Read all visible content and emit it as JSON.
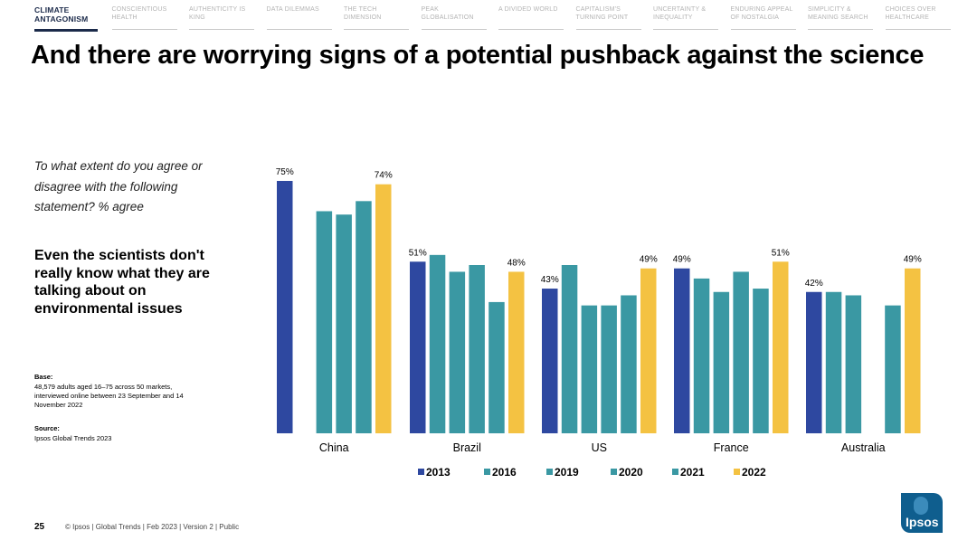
{
  "nav": {
    "items": [
      {
        "label": "Climate Antagonism",
        "active": true
      },
      {
        "label": "Conscientious Health",
        "active": false
      },
      {
        "label": "Authenticity Is King",
        "active": false
      },
      {
        "label": "Data Dilemmas",
        "active": false
      },
      {
        "label": "The Tech Dimension",
        "active": false
      },
      {
        "label": "Peak Globalisation",
        "active": false
      },
      {
        "label": "A Divided World",
        "active": false
      },
      {
        "label": "Capitalism's Turning Point",
        "active": false
      },
      {
        "label": "Uncertainty & Inequality",
        "active": false
      },
      {
        "label": "Enduring Appeal of Nostalgia",
        "active": false
      },
      {
        "label": "Simplicity & Meaning Search",
        "active": false
      },
      {
        "label": "Choices Over Healthcare",
        "active": false
      }
    ]
  },
  "title": "And there are worrying signs of a potential pushback against the science",
  "question": "To what extent do you agree or disagree with the following statement? % agree",
  "statement": "Even the scientists don't really know what they are talking about on environmental issues",
  "base": {
    "heading": "Base:",
    "text": "48,579 adults aged 16–75 across 50 markets, interviewed online between 23 September and 14 November 2022"
  },
  "source": {
    "heading": "Source:",
    "text": "Ipsos Global Trends 2023"
  },
  "footer": {
    "page": "25",
    "text": "© Ipsos | Global Trends | Feb 2023 | Version 2 | Public"
  },
  "logo": {
    "text": "Ipsos"
  },
  "colors": {
    "2013": "#2e48a0",
    "teal": "#3a98a3",
    "2022": "#f4c242",
    "dark_navy": "#1b2a4a",
    "logo_blue": "#0f5e8e"
  },
  "chart_data": {
    "type": "bar",
    "categories": [
      "China",
      "Brazil",
      "US",
      "France",
      "Australia"
    ],
    "series": [
      {
        "name": "2013",
        "color": "#2e48a0",
        "values": [
          75,
          51,
          43,
          49,
          42
        ]
      },
      {
        "name": "2016",
        "color": "#3a98a3",
        "values": [
          null,
          53,
          50,
          46,
          42
        ]
      },
      {
        "name": "2019",
        "color": "#3a98a3",
        "values": [
          66,
          48,
          38,
          42,
          41
        ]
      },
      {
        "name": "2020",
        "color": "#3a98a3",
        "values": [
          65,
          50,
          38,
          48,
          null
        ]
      },
      {
        "name": "2021",
        "color": "#3a98a3",
        "values": [
          69,
          39,
          41,
          43,
          38
        ]
      },
      {
        "name": "2022",
        "color": "#f4c242",
        "values": [
          74,
          48,
          49,
          51,
          49
        ]
      }
    ],
    "data_labels": {
      "China": {
        "2013": "75%",
        "2022": "74%"
      },
      "Brazil": {
        "2013": "51%",
        "2022": "48%"
      },
      "US": {
        "2013": "43%",
        "2022": "49%"
      },
      "France": {
        "2013": "49%",
        "2022": "51%"
      },
      "Australia": {
        "2013": "42%",
        "2022": "49%"
      }
    },
    "ylim": [
      0,
      80
    ],
    "grid": false,
    "legend_position": "bottom"
  }
}
